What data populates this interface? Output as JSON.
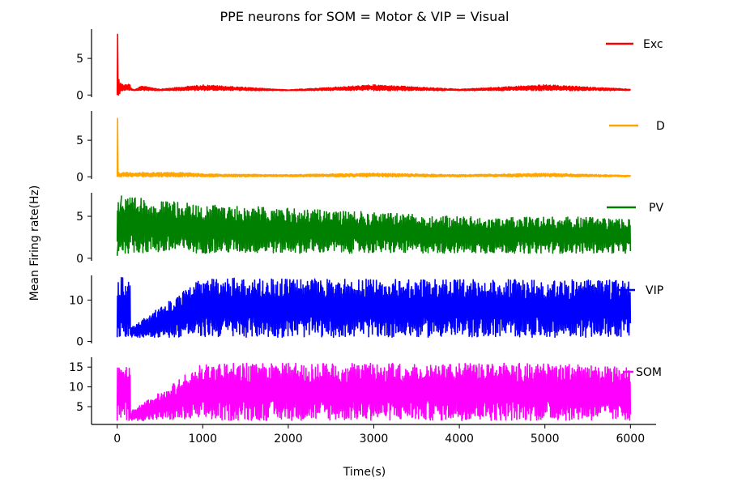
{
  "chart_data": {
    "type": "line",
    "title": "PPE neurons for SOM = Motor & VIP = Visual",
    "xlabel": "Time(s)",
    "ylabel": "Mean Firing rate(Hz)",
    "xlim": [
      -300,
      6300
    ],
    "x_ticks": [
      0,
      1000,
      2000,
      3000,
      4000,
      5000,
      6000
    ],
    "x_tick_labels": [
      "0",
      "1000",
      "2000",
      "3000",
      "4000",
      "5000",
      "6000"
    ],
    "grid": false,
    "legend_position": "right",
    "panels": [
      {
        "name": "Exc",
        "color": "#ff0000",
        "ylim": [
          -0.3,
          9
        ],
        "yticks": [
          0,
          5
        ],
        "ytick_labels": [
          "0",
          "5"
        ],
        "points": [
          [
            0,
            0
          ],
          [
            5,
            8.3
          ],
          [
            10,
            1.5
          ],
          [
            15,
            0
          ],
          [
            20,
            2.1
          ],
          [
            30,
            0.2
          ],
          [
            40,
            1.6
          ],
          [
            60,
            0.6
          ],
          [
            100,
            1.4
          ],
          [
            200,
            0.7
          ],
          [
            300,
            1.3
          ],
          [
            500,
            0.8
          ],
          [
            1000,
            1.4
          ],
          [
            2000,
            0.7
          ],
          [
            3000,
            1.4
          ],
          [
            4000,
            0.8
          ],
          [
            5000,
            1.4
          ],
          [
            6000,
            0.8
          ]
        ],
        "band": [
          0.6,
          1.5
        ]
      },
      {
        "name": "D",
        "color": "#ffa500",
        "ylim": [
          -0.3,
          9
        ],
        "yticks": [
          0,
          5
        ],
        "ytick_labels": [
          "0",
          "5"
        ],
        "points": [
          [
            0,
            0
          ],
          [
            5,
            8
          ],
          [
            10,
            0.6
          ],
          [
            20,
            0.1
          ],
          [
            100,
            0.5
          ],
          [
            500,
            1.0
          ],
          [
            1000,
            0.4
          ],
          [
            2000,
            0.3
          ],
          [
            3000,
            0.5
          ],
          [
            4000,
            0.3
          ],
          [
            5000,
            0.5
          ],
          [
            6000,
            0.2
          ]
        ],
        "band": [
          0.0,
          0.6
        ]
      },
      {
        "name": "PV",
        "color": "#008000",
        "ylim": [
          -0.3,
          7.8
        ],
        "yticks": [
          0,
          5
        ],
        "ytick_labels": [
          "0",
          "5"
        ],
        "points": [
          [
            0,
            0.3
          ],
          [
            50,
            7.4
          ],
          [
            500,
            6.9
          ],
          [
            1000,
            6.4
          ],
          [
            2000,
            6.0
          ],
          [
            3000,
            5.5
          ],
          [
            4000,
            5.0
          ],
          [
            4500,
            4.8
          ],
          [
            5000,
            5.0
          ],
          [
            6000,
            4.8
          ]
        ],
        "band": [
          0.6,
          7.2
        ]
      },
      {
        "name": "VIP",
        "color": "#0000ff",
        "ylim": [
          -0.5,
          16
        ],
        "yticks": [
          0,
          10
        ],
        "ytick_labels": [
          "0",
          "10"
        ],
        "points": [
          [
            0,
            1
          ],
          [
            1000,
            15.5
          ],
          [
            2000,
            15.2
          ],
          [
            3000,
            15.1
          ],
          [
            4000,
            15.0
          ],
          [
            5000,
            15.0
          ],
          [
            6000,
            14.8
          ]
        ],
        "band": [
          1.0,
          15.5
        ]
      },
      {
        "name": "SOM",
        "color": "#ff00ff",
        "ylim": [
          0.5,
          17.5
        ],
        "yticks": [
          5,
          10,
          15
        ],
        "ytick_labels": [
          "5",
          "10",
          "15"
        ],
        "points": [
          [
            0,
            1.5
          ],
          [
            1000,
            16.0
          ],
          [
            2000,
            16.0
          ],
          [
            3000,
            16.0
          ],
          [
            4000,
            16.0
          ],
          [
            5000,
            16.0
          ],
          [
            6000,
            15.0
          ]
        ],
        "band": [
          1.5,
          16.0
        ]
      }
    ]
  }
}
